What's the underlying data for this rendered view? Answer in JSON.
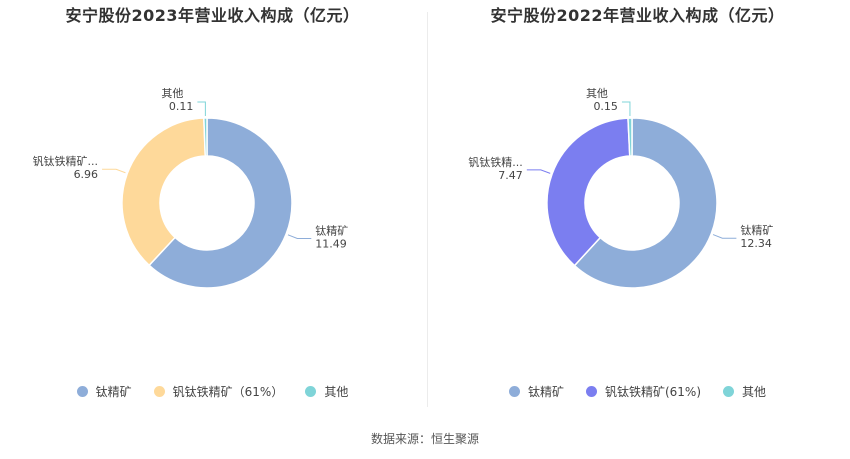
{
  "source": "数据来源：恒生聚源",
  "chart_data": [
    {
      "type": "pie",
      "title": "安宁股份2023年营业收入构成（亿元）",
      "categories": [
        "钛精矿",
        "钒钛铁精矿",
        "其他"
      ],
      "display_labels": [
        "钛精矿",
        "钒钛铁精矿...",
        "其他"
      ],
      "values": [
        11.49,
        6.96,
        0.11
      ],
      "value_labels": [
        "11.49",
        "6.96",
        "0.11"
      ],
      "colors": [
        "#8eadd9",
        "#fed99a",
        "#7fd4d8"
      ],
      "legend": [
        "钛精矿",
        "钒钛铁精矿（61%）",
        "其他"
      ],
      "legend_position": "bottom"
    },
    {
      "type": "pie",
      "title": "安宁股份2022年营业收入构成（亿元）",
      "categories": [
        "钛精矿",
        "钒钛铁精矿",
        "其他"
      ],
      "display_labels": [
        "钛精矿",
        "钒钛铁精...",
        "其他"
      ],
      "values": [
        12.34,
        7.47,
        0.15
      ],
      "value_labels": [
        "12.34",
        "7.47",
        "0.15"
      ],
      "colors": [
        "#8eadd9",
        "#7b7ef0",
        "#7fd4d8"
      ],
      "legend": [
        "钛精矿",
        "钒钛铁精矿(61%)",
        "其他"
      ],
      "legend_position": "bottom"
    }
  ]
}
